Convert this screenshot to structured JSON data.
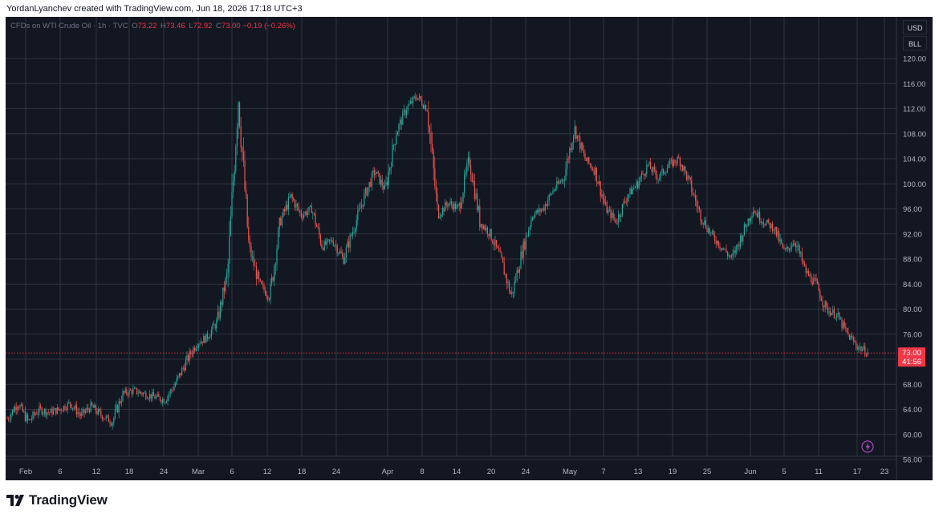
{
  "caption": "YordanLyanchev created with TradingView.com, Jun 18, 2026 17:18 UTC+3",
  "legend": {
    "symbol": "CFDs on WTI Crude Oil · 1h · TVC",
    "o_label": "O",
    "o_value": "73.22",
    "h_label": "H",
    "h_value": "73.46",
    "l_label": "L",
    "l_value": "72.92",
    "c_label": "C",
    "c_value": "73.00",
    "change": "−0.19 (−0.26%)"
  },
  "axis_buttons": {
    "currency": "USD",
    "unit": "BLL"
  },
  "price_tag": {
    "price": "73.00",
    "countdown": "41:56"
  },
  "footer": {
    "brand": "TradingView"
  },
  "colors": {
    "background": "#131722",
    "grid": "#3a3e4a",
    "up": "#26a69a",
    "down": "#ef5350",
    "last_price": "#f23645"
  },
  "chart_data": {
    "type": "line",
    "style": "candlestick",
    "ylim": [
      55,
      121
    ],
    "yticks": [
      "56.00",
      "60.00",
      "64.00",
      "68.00",
      "72.00",
      "76.00",
      "80.00",
      "84.00",
      "88.00",
      "92.00",
      "96.00",
      "100.00",
      "104.00",
      "108.00",
      "112.00",
      "116.00",
      "120.00"
    ],
    "xticks": [
      "Feb",
      "6",
      "12",
      "18",
      "24",
      "Mar",
      "6",
      "12",
      "18",
      "24",
      "Apr",
      "8",
      "14",
      "20",
      "24",
      "May",
      "7",
      "13",
      "19",
      "25",
      "Jun",
      "5",
      "11",
      "17",
      "23"
    ],
    "x": [
      "Jan 31",
      "Feb 1",
      "Feb 3",
      "Feb 5",
      "Feb 7",
      "Feb 9",
      "Feb 11",
      "Feb 13",
      "Feb 15",
      "Feb 17",
      "Feb 19",
      "Feb 21",
      "Feb 23",
      "Feb 25",
      "Feb 27",
      "Mar 1",
      "Mar 3",
      "Mar 4",
      "Mar 5",
      "Mar 6",
      "Mar 7",
      "Mar 8",
      "Mar 9",
      "Mar 10",
      "Mar 11",
      "Mar 12",
      "Mar 14",
      "Mar 16",
      "Mar 18",
      "Mar 20",
      "Mar 22",
      "Mar 24",
      "Mar 26",
      "Mar 28",
      "Mar 30",
      "Apr 1",
      "Apr 3",
      "Apr 5",
      "Apr 6",
      "Apr 7",
      "Apr 8",
      "Apr 9",
      "Apr 11",
      "Apr 13",
      "Apr 14",
      "Apr 16",
      "Apr 18",
      "Apr 19",
      "Apr 20",
      "Apr 22",
      "Apr 24",
      "Apr 26",
      "Apr 28",
      "Apr 30",
      "May 2",
      "May 4",
      "May 6",
      "May 8",
      "May 10",
      "May 12",
      "May 14",
      "May 16",
      "May 18",
      "May 20",
      "May 22",
      "May 24",
      "May 26",
      "May 28",
      "May 30",
      "Jun 1",
      "Jun 3",
      "Jun 5",
      "Jun 7",
      "Jun 9",
      "Jun 11",
      "Jun 12",
      "Jun 13",
      "Jun 14",
      "Jun 15",
      "Jun 16",
      "Jun 17",
      "Jun 18",
      "Jun 19"
    ],
    "values": [
      62.5,
      65,
      62,
      64,
      63.5,
      64,
      65,
      63,
      64.5,
      63,
      62,
      66.5,
      67,
      66.5,
      66,
      65.5,
      68,
      71.5,
      74.5,
      75.5,
      78,
      86,
      114,
      90,
      84,
      82,
      94,
      98,
      95,
      96,
      90,
      91,
      88,
      93,
      98,
      102,
      99,
      108,
      112,
      114,
      112,
      95,
      97,
      96,
      104,
      94,
      92,
      88,
      82,
      89,
      95,
      96,
      99,
      101,
      109,
      104,
      102,
      96,
      94,
      98,
      100,
      103,
      101,
      103,
      104,
      100,
      95,
      92,
      90,
      88,
      92,
      96,
      94,
      93,
      89,
      91,
      86,
      84,
      80,
      79,
      76,
      74,
      73
    ],
    "last_price": 73.0
  }
}
